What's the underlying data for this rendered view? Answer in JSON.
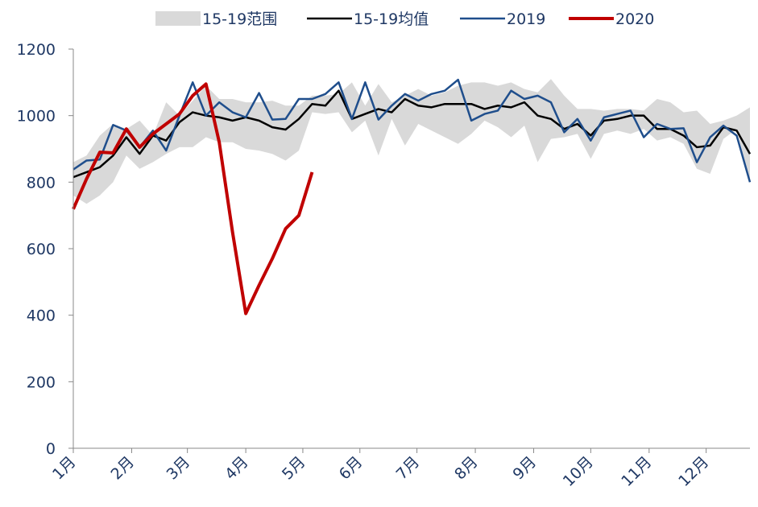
{
  "chart_data": {
    "type": "line",
    "x": [
      0,
      1,
      2,
      3,
      4,
      5,
      6,
      7,
      8,
      9,
      10,
      11,
      12,
      13,
      14,
      15,
      16,
      17,
      18,
      19,
      20,
      21,
      22,
      23,
      24,
      25,
      26,
      27,
      28,
      29,
      30,
      31,
      32,
      33,
      34,
      35,
      36,
      37,
      38,
      39,
      40,
      41,
      42,
      43,
      44,
      45,
      46,
      47,
      48,
      49,
      50,
      51
    ],
    "xlim": [
      0,
      51
    ],
    "xticks": [
      {
        "value": 0,
        "label": "1月"
      },
      {
        "value": 4.4,
        "label": "2月"
      },
      {
        "value": 8.6,
        "label": "3月"
      },
      {
        "value": 13,
        "label": "4月"
      },
      {
        "value": 17.3,
        "label": "5月"
      },
      {
        "value": 21.6,
        "label": "6月"
      },
      {
        "value": 25.9,
        "label": "7月"
      },
      {
        "value": 30.3,
        "label": "8月"
      },
      {
        "value": 34.7,
        "label": "9月"
      },
      {
        "value": 39,
        "label": "10月"
      },
      {
        "value": 43.4,
        "label": "11月"
      },
      {
        "value": 47.7,
        "label": "12月"
      }
    ],
    "ylim": [
      0,
      1200
    ],
    "yticks": [
      0,
      200,
      400,
      600,
      800,
      1000,
      1200
    ],
    "grid": false,
    "legend": "top",
    "series": [
      {
        "name": "15-19范围",
        "color": "#d9d9d9",
        "upper": [
          860,
          880,
          940,
          975,
          960,
          985,
          940,
          1040,
          1000,
          1045,
          1090,
          1050,
          1050,
          1040,
          1040,
          1045,
          1030,
          1030,
          1060,
          1060,
          1065,
          1100,
          1030,
          1095,
          1040,
          1060,
          1080,
          1060,
          1070,
          1090,
          1100,
          1100,
          1090,
          1100,
          1080,
          1070,
          1110,
          1060,
          1020,
          1020,
          1015,
          1020,
          1020,
          1015,
          1050,
          1040,
          1010,
          1015,
          975,
          985,
          1000,
          1025
        ],
        "lower": [
          760,
          735,
          760,
          800,
          880,
          840,
          860,
          885,
          905,
          905,
          935,
          920,
          920,
          900,
          895,
          885,
          865,
          895,
          1010,
          1005,
          1010,
          950,
          985,
          880,
          990,
          910,
          975,
          955,
          935,
          915,
          945,
          985,
          965,
          935,
          970,
          860,
          930,
          935,
          945,
          870,
          945,
          955,
          945,
          960,
          925,
          935,
          915,
          840,
          825,
          930,
          960,
          800
        ]
      },
      {
        "name": "15-19均值",
        "color": "#000000",
        "values": [
          815,
          830,
          845,
          880,
          935,
          885,
          940,
          925,
          980,
          1010,
          1000,
          995,
          985,
          995,
          985,
          965,
          958,
          990,
          1035,
          1030,
          1075,
          990,
          1005,
          1020,
          1010,
          1050,
          1030,
          1025,
          1035,
          1035,
          1035,
          1020,
          1030,
          1025,
          1040,
          1000,
          990,
          960,
          975,
          940,
          985,
          990,
          1000,
          1000,
          960,
          960,
          940,
          905,
          910,
          965,
          955,
          885
        ]
      },
      {
        "name": "2019",
        "color": "#1f4e8c",
        "values": [
          838,
          865,
          868,
          972,
          955,
          905,
          955,
          895,
          1000,
          1100,
          1000,
          1040,
          1010,
          995,
          1068,
          988,
          990,
          1050,
          1050,
          1065,
          1100,
          990,
          1100,
          988,
          1030,
          1065,
          1045,
          1065,
          1075,
          1108,
          985,
          1005,
          1015,
          1075,
          1050,
          1060,
          1040,
          950,
          990,
          925,
          995,
          1005,
          1015,
          935,
          975,
          960,
          962,
          860,
          935,
          970,
          940,
          800
        ]
      },
      {
        "name": "2020",
        "color": "#c00000",
        "values": [
          719,
          810,
          890,
          888,
          960,
          905,
          945,
          975,
          1005,
          1060,
          1095,
          920,
          650,
          405,
          490,
          570,
          660,
          700,
          830,
          null,
          null,
          null,
          null,
          null,
          null,
          null,
          null,
          null,
          null,
          null,
          null,
          null,
          null,
          null,
          null,
          null,
          null,
          null,
          null,
          null,
          null,
          null,
          null,
          null,
          null,
          null,
          null,
          null,
          null,
          null,
          null,
          null
        ]
      }
    ]
  }
}
